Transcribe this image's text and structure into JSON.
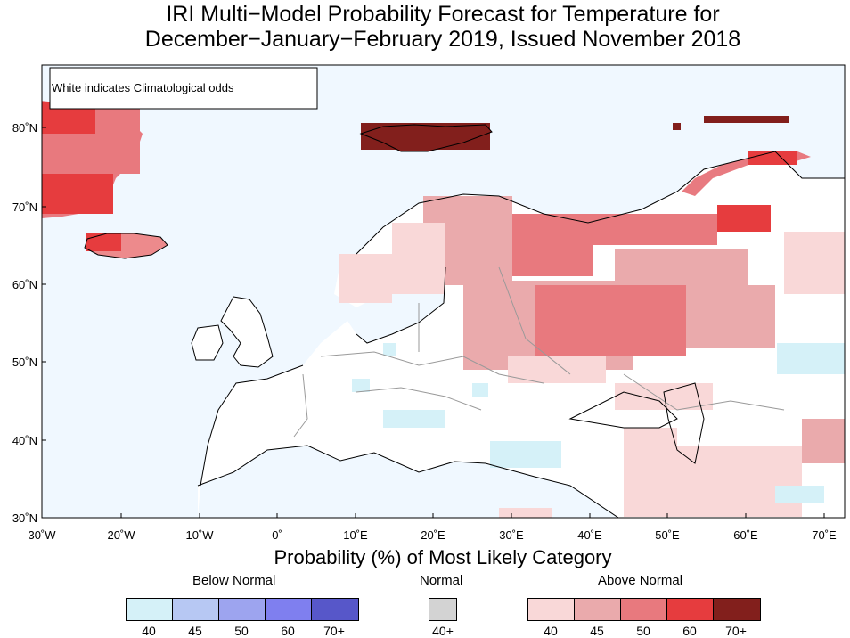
{
  "title": {
    "line1": "IRI Multi−Model Probability Forecast for Temperature for",
    "line2": "December−January−February 2019, Issued November 2018"
  },
  "map": {
    "note": "White indicates Climatological odds",
    "lat_ticks": [
      "80˚N",
      "70˚N",
      "60˚N",
      "50˚N",
      "40˚N",
      "30˚N"
    ],
    "lon_ticks": [
      "30˚W",
      "20˚W",
      "10˚W",
      "0˚",
      "10˚E",
      "20˚E",
      "30˚E",
      "40˚E",
      "50˚E",
      "60˚E",
      "70˚E"
    ],
    "extent": {
      "lon": [
        -30,
        72.5
      ],
      "lat": [
        30,
        87.5
      ]
    },
    "ocean_color": "#f0f8ff"
  },
  "legend": {
    "title": "Probability (%) of Most Likely Category",
    "below": {
      "label": "Below Normal",
      "bins": [
        "40",
        "45",
        "50",
        "60",
        "70+"
      ],
      "colors": [
        "#d5f1f8",
        "#b7c8f3",
        "#9da4ef",
        "#7f7fef",
        "#5757c9"
      ]
    },
    "normal": {
      "label": "Normal",
      "bins": [
        "40+"
      ],
      "colors": [
        "#d3d3d3"
      ]
    },
    "above": {
      "label": "Above Normal",
      "bins": [
        "40",
        "45",
        "50",
        "60",
        "70+"
      ],
      "colors": [
        "#f9d8d8",
        "#eaaaac",
        "#e8797e",
        "#e63c3e",
        "#821f1c"
      ]
    }
  }
}
